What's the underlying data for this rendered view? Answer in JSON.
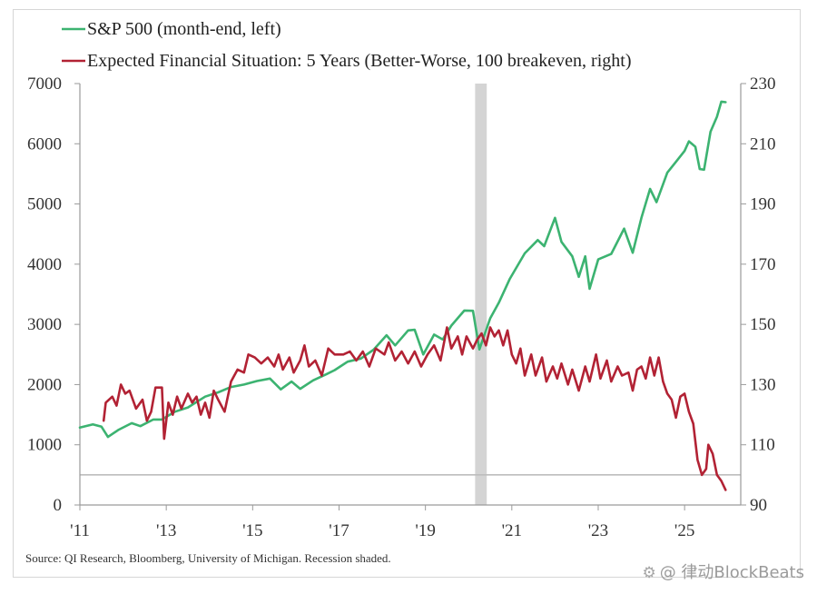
{
  "chart_data": {
    "type": "line",
    "x_ticks": [
      "'11",
      "'13",
      "'15",
      "'17",
      "'19",
      "'21",
      "'23",
      "'25"
    ],
    "xlim": [
      2011.0,
      2026.3
    ],
    "ylim_left": [
      0,
      7000
    ],
    "yticks_left": [
      "7000",
      "6000",
      "5000",
      "4000",
      "3000",
      "2000",
      "1000",
      "0"
    ],
    "ylim_right": [
      90,
      230
    ],
    "yticks_right": [
      "230",
      "210",
      "190",
      "170",
      "150",
      "130",
      "110",
      "90"
    ],
    "grid": false,
    "reference_line": {
      "axis": "right",
      "value": 100
    },
    "recession": {
      "start": 2020.15,
      "end": 2020.42
    },
    "legend_position": "top-left",
    "series": [
      {
        "name": "S&P 500 (month-end, left)",
        "axis": "left",
        "color": "#3cb371",
        "points": [
          [
            2011.0,
            1286
          ],
          [
            2011.3,
            1340
          ],
          [
            2011.5,
            1300
          ],
          [
            2011.65,
            1130
          ],
          [
            2011.9,
            1250
          ],
          [
            2012.2,
            1360
          ],
          [
            2012.4,
            1310
          ],
          [
            2012.7,
            1420
          ],
          [
            2012.9,
            1420
          ],
          [
            2013.2,
            1550
          ],
          [
            2013.5,
            1620
          ],
          [
            2013.9,
            1800
          ],
          [
            2014.2,
            1870
          ],
          [
            2014.5,
            1960
          ],
          [
            2014.8,
            2000
          ],
          [
            2015.1,
            2060
          ],
          [
            2015.4,
            2100
          ],
          [
            2015.65,
            1920
          ],
          [
            2015.9,
            2050
          ],
          [
            2016.1,
            1930
          ],
          [
            2016.4,
            2070
          ],
          [
            2016.7,
            2170
          ],
          [
            2016.9,
            2240
          ],
          [
            2017.2,
            2380
          ],
          [
            2017.5,
            2430
          ],
          [
            2017.8,
            2580
          ],
          [
            2018.1,
            2820
          ],
          [
            2018.3,
            2650
          ],
          [
            2018.6,
            2900
          ],
          [
            2018.75,
            2910
          ],
          [
            2018.95,
            2500
          ],
          [
            2019.2,
            2830
          ],
          [
            2019.4,
            2750
          ],
          [
            2019.6,
            2980
          ],
          [
            2019.9,
            3230
          ],
          [
            2020.1,
            3225
          ],
          [
            2020.25,
            2585
          ],
          [
            2020.5,
            3100
          ],
          [
            2020.7,
            3360
          ],
          [
            2020.95,
            3750
          ],
          [
            2021.3,
            4180
          ],
          [
            2021.6,
            4400
          ],
          [
            2021.75,
            4300
          ],
          [
            2022.0,
            4770
          ],
          [
            2022.15,
            4370
          ],
          [
            2022.4,
            4130
          ],
          [
            2022.55,
            3790
          ],
          [
            2022.7,
            4130
          ],
          [
            2022.8,
            3590
          ],
          [
            2023.0,
            4080
          ],
          [
            2023.3,
            4170
          ],
          [
            2023.5,
            4450
          ],
          [
            2023.6,
            4590
          ],
          [
            2023.8,
            4190
          ],
          [
            2024.0,
            4770
          ],
          [
            2024.2,
            5250
          ],
          [
            2024.35,
            5030
          ],
          [
            2024.6,
            5520
          ],
          [
            2024.8,
            5700
          ],
          [
            2025.0,
            5880
          ],
          [
            2025.1,
            6040
          ],
          [
            2025.25,
            5950
          ],
          [
            2025.35,
            5580
          ],
          [
            2025.45,
            5570
          ],
          [
            2025.6,
            6200
          ],
          [
            2025.75,
            6450
          ],
          [
            2025.85,
            6700
          ],
          [
            2025.95,
            6690
          ]
        ]
      },
      {
        "name": "Expected Financial Situation: 5 Years (Better-Worse, 100 breakeven, right)",
        "axis": "right",
        "color": "#b22234",
        "points": [
          [
            2011.55,
            118
          ],
          [
            2011.6,
            124
          ],
          [
            2011.75,
            126
          ],
          [
            2011.85,
            123
          ],
          [
            2011.95,
            130
          ],
          [
            2012.05,
            127
          ],
          [
            2012.15,
            128
          ],
          [
            2012.3,
            122
          ],
          [
            2012.45,
            125
          ],
          [
            2012.55,
            118
          ],
          [
            2012.65,
            121
          ],
          [
            2012.75,
            129
          ],
          [
            2012.9,
            129
          ],
          [
            2012.95,
            112
          ],
          [
            2013.05,
            124
          ],
          [
            2013.15,
            120
          ],
          [
            2013.25,
            126
          ],
          [
            2013.35,
            122
          ],
          [
            2013.5,
            127
          ],
          [
            2013.6,
            124
          ],
          [
            2013.7,
            126
          ],
          [
            2013.8,
            120
          ],
          [
            2013.9,
            124
          ],
          [
            2014.0,
            119
          ],
          [
            2014.1,
            128
          ],
          [
            2014.2,
            125
          ],
          [
            2014.35,
            121
          ],
          [
            2014.5,
            131
          ],
          [
            2014.65,
            135
          ],
          [
            2014.8,
            134
          ],
          [
            2014.9,
            140
          ],
          [
            2015.05,
            139
          ],
          [
            2015.2,
            137
          ],
          [
            2015.35,
            139
          ],
          [
            2015.5,
            136
          ],
          [
            2015.6,
            140
          ],
          [
            2015.7,
            135
          ],
          [
            2015.85,
            139
          ],
          [
            2015.95,
            134
          ],
          [
            2016.1,
            138
          ],
          [
            2016.2,
            143
          ],
          [
            2016.3,
            136
          ],
          [
            2016.45,
            138
          ],
          [
            2016.6,
            133
          ],
          [
            2016.75,
            142
          ],
          [
            2016.9,
            140
          ],
          [
            2017.1,
            140
          ],
          [
            2017.25,
            141
          ],
          [
            2017.4,
            138
          ],
          [
            2017.55,
            141
          ],
          [
            2017.7,
            136
          ],
          [
            2017.85,
            142
          ],
          [
            2018.05,
            140
          ],
          [
            2018.15,
            144
          ],
          [
            2018.3,
            138
          ],
          [
            2018.45,
            141
          ],
          [
            2018.6,
            137
          ],
          [
            2018.75,
            141
          ],
          [
            2018.9,
            136
          ],
          [
            2019.05,
            140
          ],
          [
            2019.2,
            143
          ],
          [
            2019.35,
            138
          ],
          [
            2019.5,
            149
          ],
          [
            2019.6,
            142
          ],
          [
            2019.75,
            146
          ],
          [
            2019.85,
            140
          ],
          [
            2019.95,
            146
          ],
          [
            2020.1,
            142
          ],
          [
            2020.2,
            145
          ],
          [
            2020.3,
            147
          ],
          [
            2020.4,
            143
          ],
          [
            2020.5,
            149
          ],
          [
            2020.6,
            146
          ],
          [
            2020.7,
            148
          ],
          [
            2020.8,
            143
          ],
          [
            2020.9,
            148
          ],
          [
            2021.0,
            140
          ],
          [
            2021.1,
            137
          ],
          [
            2021.2,
            142
          ],
          [
            2021.3,
            133
          ],
          [
            2021.45,
            140
          ],
          [
            2021.55,
            133
          ],
          [
            2021.7,
            139
          ],
          [
            2021.8,
            131
          ],
          [
            2021.95,
            136
          ],
          [
            2022.05,
            132
          ],
          [
            2022.15,
            137
          ],
          [
            2022.3,
            130
          ],
          [
            2022.4,
            135
          ],
          [
            2022.55,
            128
          ],
          [
            2022.7,
            136
          ],
          [
            2022.8,
            131
          ],
          [
            2022.95,
            140
          ],
          [
            2023.05,
            132
          ],
          [
            2023.2,
            138
          ],
          [
            2023.3,
            131
          ],
          [
            2023.45,
            136
          ],
          [
            2023.55,
            133
          ],
          [
            2023.7,
            134
          ],
          [
            2023.8,
            128
          ],
          [
            2023.9,
            135
          ],
          [
            2024.0,
            136
          ],
          [
            2024.1,
            132
          ],
          [
            2024.2,
            139
          ],
          [
            2024.3,
            133
          ],
          [
            2024.4,
            139
          ],
          [
            2024.5,
            131
          ],
          [
            2024.6,
            127
          ],
          [
            2024.7,
            125
          ],
          [
            2024.8,
            119
          ],
          [
            2024.9,
            126
          ],
          [
            2025.0,
            127
          ],
          [
            2025.1,
            121
          ],
          [
            2025.2,
            117
          ],
          [
            2025.3,
            105
          ],
          [
            2025.4,
            100
          ],
          [
            2025.5,
            102
          ],
          [
            2025.55,
            110
          ],
          [
            2025.65,
            107
          ],
          [
            2025.75,
            100
          ],
          [
            2025.85,
            98
          ],
          [
            2025.95,
            95
          ]
        ]
      }
    ]
  },
  "source_note": "Source: QI Research, Bloomberg, University of Michigan. Recession shaded.",
  "watermark": {
    "icon": "⚙",
    "text": "@ 律动BlockBeats"
  }
}
